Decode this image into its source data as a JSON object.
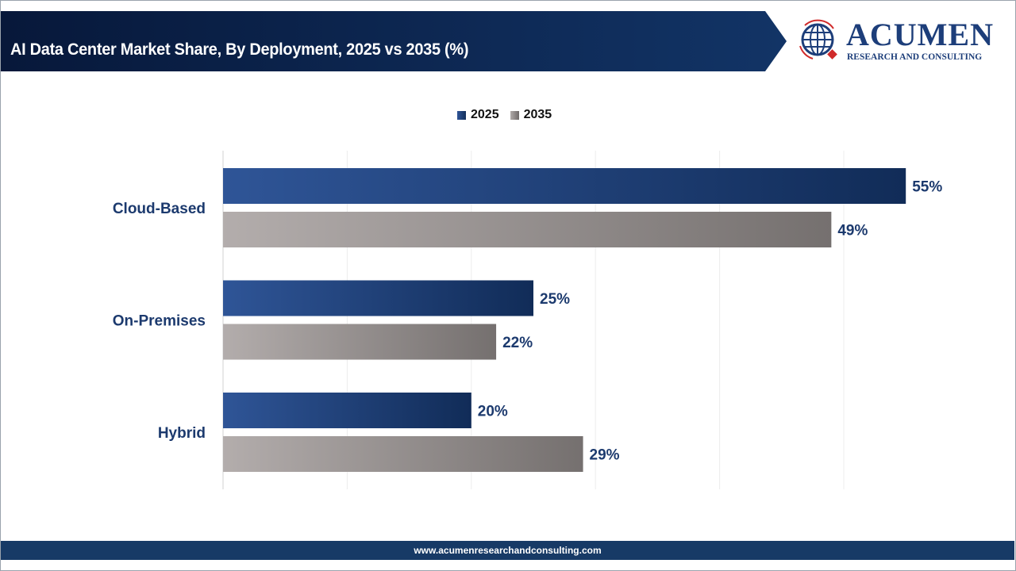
{
  "header": {
    "title": "AI Data Center Market Share, By Deployment, 2025 vs 2035 (%)",
    "banner_color": "#0f2a55"
  },
  "logo": {
    "name": "ACUMEN",
    "tagline": "RESEARCH AND CONSULTING"
  },
  "footer": {
    "url": "www.acumenresearchandconsulting.com"
  },
  "chart_data": {
    "type": "bar",
    "orientation": "horizontal",
    "title": "AI Data Center Market Share, By Deployment, 2025 vs 2035 (%)",
    "categories": [
      "Cloud-Based",
      "On-Premises",
      "Hybrid"
    ],
    "series": [
      {
        "name": "2025",
        "values": [
          55,
          25,
          20
        ],
        "labels": [
          "55%",
          "25%",
          "20%"
        ],
        "color": "#1c3a6e"
      },
      {
        "name": "2035",
        "values": [
          49,
          22,
          29
        ],
        "labels": [
          "49%",
          "22%",
          "29%"
        ],
        "color": "#7a7574"
      }
    ],
    "xlim": [
      0,
      60
    ],
    "grid": true,
    "legend": "top-center",
    "label_color": "#1c3a6e"
  }
}
